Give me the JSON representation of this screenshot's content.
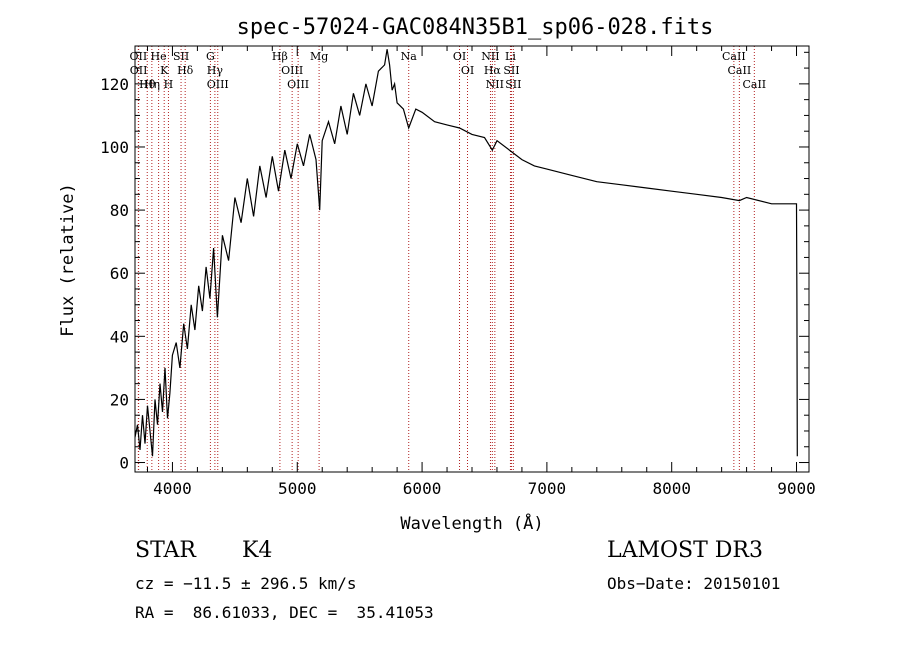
{
  "chart_data": {
    "type": "line",
    "title": "spec-57024-GAC084N35B1_sp06-028.fits",
    "xlabel": "Wavelength (Å)",
    "ylabel": "Flux (relative)",
    "xlim": [
      3700,
      9100
    ],
    "ylim": [
      -3,
      132
    ],
    "x_ticks": [
      4000,
      5000,
      6000,
      7000,
      8000,
      9000
    ],
    "x_tick_labels": [
      "4000",
      "5000",
      "6000",
      "7000",
      "8000",
      "9000"
    ],
    "y_ticks": [
      0,
      20,
      40,
      60,
      80,
      100,
      120
    ],
    "y_tick_labels": [
      "0",
      "20",
      "40",
      "60",
      "80",
      "100",
      "120"
    ],
    "grid": false,
    "series": [
      {
        "name": "flux",
        "x": [
          3700,
          3720,
          3740,
          3760,
          3780,
          3800,
          3820,
          3840,
          3860,
          3880,
          3900,
          3920,
          3940,
          3960,
          3980,
          4000,
          4030,
          4060,
          4090,
          4120,
          4150,
          4180,
          4210,
          4240,
          4270,
          4300,
          4330,
          4360,
          4400,
          4450,
          4500,
          4550,
          4600,
          4650,
          4700,
          4750,
          4800,
          4850,
          4900,
          4950,
          5000,
          5050,
          5100,
          5150,
          5180,
          5200,
          5250,
          5300,
          5350,
          5400,
          5450,
          5500,
          5550,
          5600,
          5650,
          5700,
          5720,
          5740,
          5760,
          5780,
          5800,
          5850,
          5893,
          5950,
          6000,
          6100,
          6200,
          6300,
          6400,
          6500,
          6563,
          6600,
          6700,
          6800,
          6900,
          7000,
          7200,
          7400,
          7600,
          7800,
          8000,
          8200,
          8400,
          8542,
          8600,
          8800,
          9000,
          9003,
          9006
        ],
        "y": [
          8,
          12,
          4,
          15,
          6,
          18,
          10,
          2,
          20,
          12,
          25,
          16,
          30,
          14,
          22,
          34,
          38,
          30,
          44,
          36,
          50,
          42,
          56,
          48,
          62,
          52,
          68,
          46,
          72,
          64,
          84,
          76,
          90,
          78,
          94,
          84,
          97,
          86,
          99,
          90,
          101,
          94,
          104,
          96,
          80,
          102,
          108,
          101,
          113,
          104,
          117,
          110,
          120,
          113,
          124,
          126,
          131,
          126,
          118,
          120,
          114,
          112,
          106,
          112,
          111,
          108,
          107,
          106,
          104,
          103,
          99,
          102,
          99,
          96,
          94,
          93,
          91,
          89,
          88,
          87,
          86,
          85,
          84,
          83,
          84,
          82,
          82,
          52,
          2
        ]
      }
    ],
    "line_markers": [
      {
        "label": "Hθ",
        "wavelength": 3798
      },
      {
        "label": "OII",
        "wavelength": 3727
      },
      {
        "label": "OII",
        "wavelength": 3729
      },
      {
        "label": "Hη",
        "wavelength": 3835
      },
      {
        "label": "K",
        "wavelength": 3934
      },
      {
        "label": "He",
        "wavelength": 3889
      },
      {
        "label": "H",
        "wavelength": 3968
      },
      {
        "label": "SII",
        "wavelength": 4069
      },
      {
        "label": "Hδ",
        "wavelength": 4102
      },
      {
        "label": "OIII",
        "wavelength": 4363
      },
      {
        "label": "Hγ",
        "wavelength": 4340
      },
      {
        "label": "G",
        "wavelength": 4304
      },
      {
        "label": "Hβ",
        "wavelength": 4861
      },
      {
        "label": "OIII",
        "wavelength": 5007
      },
      {
        "label": "OIII",
        "wavelength": 4959
      },
      {
        "label": "Mg",
        "wavelength": 5175
      },
      {
        "label": "Na",
        "wavelength": 5893
      },
      {
        "label": "OI",
        "wavelength": 6300
      },
      {
        "label": "OI",
        "wavelength": 6364
      },
      {
        "label": "Hα",
        "wavelength": 6563
      },
      {
        "label": "NII",
        "wavelength": 6548
      },
      {
        "label": "NII",
        "wavelength": 6583
      },
      {
        "label": "SII",
        "wavelength": 6716
      },
      {
        "label": "SII",
        "wavelength": 6731
      },
      {
        "label": "Li",
        "wavelength": 6708
      },
      {
        "label": "CaII",
        "wavelength": 8542
      },
      {
        "label": "CaII",
        "wavelength": 8498
      },
      {
        "label": "CaII",
        "wavelength": 8662
      }
    ]
  },
  "info": {
    "class_label": "STAR",
    "subclass": "K4",
    "survey": "LAMOST DR3",
    "cz_line": "cz = −11.5 ± 296.5 km/s",
    "obs_date_line": "Obs−Date: 20150101",
    "coords_line": "RA =  86.61033, DEC =  35.41053"
  },
  "colors": {
    "line": "#000000",
    "marker": "#b22222",
    "background": "#ffffff"
  }
}
